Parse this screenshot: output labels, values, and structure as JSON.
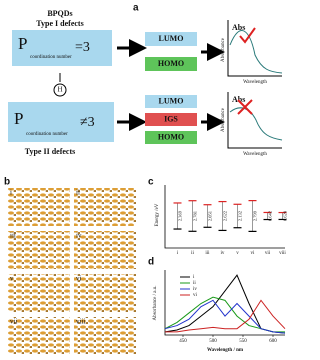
{
  "panel_a": {
    "label": "a",
    "title": "BPQDs",
    "type1": {
      "name": "Type I defects",
      "p": "P",
      "sub": "coordination number",
      "rel": "=3",
      "lumo": "LUMO",
      "homo": "HOMO",
      "abs": "Abs",
      "y_label": "Absorbance",
      "x_label": "Wavelength"
    },
    "middle": "H",
    "type2": {
      "name": "Type II defects",
      "p": "P",
      "sub": "coordination number",
      "rel": "≠3",
      "lumo": "LUMO",
      "igs": "IGS",
      "homo": "HOMO",
      "abs": "Abs",
      "y_label": "Absorbance",
      "x_label": "Wavelength"
    }
  },
  "panel_b": {
    "label": "b",
    "structures": [
      "i",
      "ii",
      "iii",
      "iv",
      "v",
      "vi",
      "vii",
      "viii"
    ]
  },
  "panel_c": {
    "label": "c",
    "y_label": "Energy /eV",
    "categories": [
      "i",
      "ii",
      "iii",
      "iv",
      "v",
      "vi",
      "vii",
      "viii"
    ],
    "gaps": [
      2.369,
      2.781,
      2.051,
      2.622,
      2.132,
      2.799,
      0.642,
      0.628
    ]
  },
  "panel_d": {
    "label": "d",
    "y_label": "Absorbance / a.u.",
    "x_label": "Wavelength / nm",
    "xlim": [
      420,
      620
    ],
    "xticks": [
      450,
      500,
      550,
      600
    ],
    "ylim": [
      0,
      1
    ],
    "x": [
      420,
      440,
      460,
      480,
      500,
      520,
      540,
      560,
      580,
      600,
      620
    ],
    "series": [
      {
        "name": "i",
        "color": "#000000",
        "values": [
          0.05,
          0.08,
          0.15,
          0.3,
          0.45,
          0.7,
          0.95,
          0.5,
          0.1,
          0.05,
          0.03
        ]
      },
      {
        "name": "ii",
        "color": "#1a9a1a",
        "values": [
          0.1,
          0.2,
          0.35,
          0.5,
          0.6,
          0.55,
          0.3,
          0.15,
          0.1,
          0.05,
          0.05
        ]
      },
      {
        "name": "iv",
        "color": "#2233cc",
        "values": [
          0.1,
          0.15,
          0.25,
          0.45,
          0.55,
          0.3,
          0.5,
          0.3,
          0.1,
          0.05,
          0.03
        ]
      },
      {
        "name": "vi",
        "color": "#cc2222",
        "values": [
          0.05,
          0.05,
          0.08,
          0.1,
          0.12,
          0.1,
          0.1,
          0.25,
          0.55,
          0.3,
          0.1
        ]
      }
    ]
  }
}
